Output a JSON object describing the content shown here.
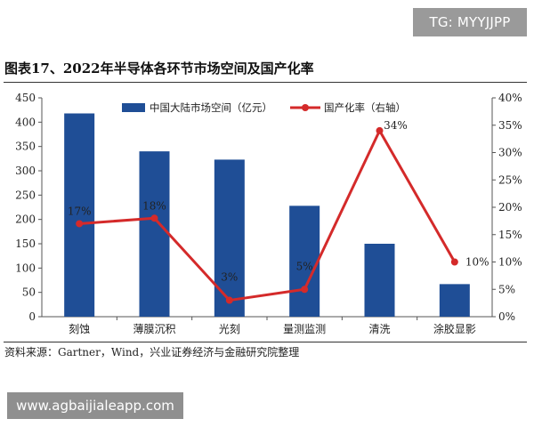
{
  "watermark_top": "TG: MYYJJPP",
  "title": "图表17、2022年半导体各环节市场空间及国产化率",
  "source": "资料来源：Gartner，Wind，兴业证券经济与金融研究院整理",
  "watermark_bottom": "www.agbaijialeapp.com",
  "chart_data": {
    "type": "bar",
    "categories": [
      "刻蚀",
      "薄膜沉积",
      "光刻",
      "量测监测",
      "清洗",
      "涂胶显影"
    ],
    "series": [
      {
        "name": "中国大陆市场空间（亿元）",
        "type": "bar",
        "axis": "left",
        "color": "#1f4e96",
        "values": [
          418,
          340,
          323,
          228,
          150,
          67
        ]
      },
      {
        "name": "国产化率（右轴）",
        "type": "line",
        "axis": "right",
        "color": "#d42a2a",
        "values": [
          17,
          18,
          3,
          5,
          34,
          10
        ],
        "data_labels": [
          "17%",
          "18%",
          "3%",
          "5%",
          "34%",
          "10%"
        ]
      }
    ],
    "y_left": {
      "min": 0,
      "max": 450,
      "step": 50
    },
    "y_right": {
      "min": 0,
      "max": 40,
      "step": 5,
      "suffix": "%"
    },
    "grid": false,
    "legend": "top-center"
  }
}
